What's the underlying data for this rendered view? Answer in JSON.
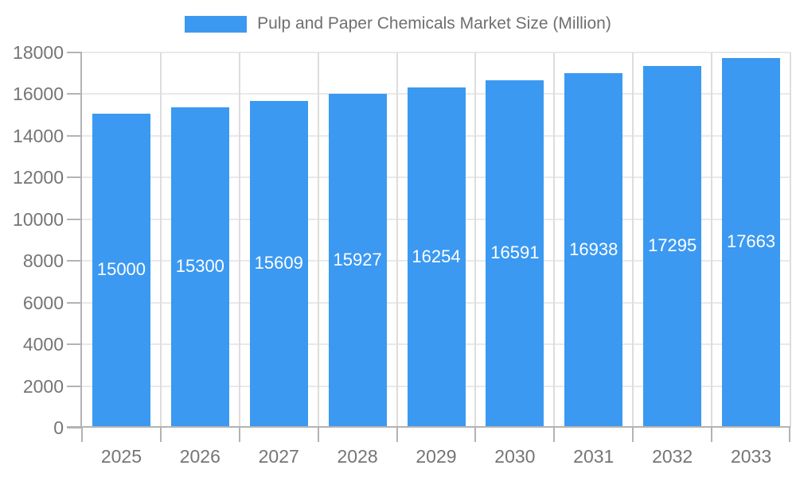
{
  "legend": {
    "label": "Pulp and Paper Chemicals Market Size (Million)",
    "swatch_color": "#3b99f1"
  },
  "chart_data": {
    "type": "bar",
    "title": "Pulp and Paper Chemicals Market Size (Million)",
    "series_name": "Pulp and Paper Chemicals Market Size (Million)",
    "categories": [
      "2025",
      "2026",
      "2027",
      "2028",
      "2029",
      "2030",
      "2031",
      "2032",
      "2033"
    ],
    "values": [
      15000,
      15300,
      15609,
      15927,
      16254,
      16591,
      16938,
      17295,
      17663
    ],
    "bar_labels": [
      "15000",
      "15300",
      "15609",
      "15927",
      "16254",
      "16591",
      "16938",
      "17295",
      "17663"
    ],
    "xlabel": "",
    "ylabel": "",
    "ylim": [
      0,
      18000
    ],
    "ytick_step": 2000,
    "yticks": [
      0,
      2000,
      4000,
      6000,
      8000,
      10000,
      12000,
      14000,
      16000,
      18000
    ],
    "ytick_labels": [
      "0",
      "2000",
      "4000",
      "6000",
      "8000",
      "10000",
      "12000",
      "14000",
      "16000",
      "18000"
    ],
    "grid": true,
    "legend_position": "top"
  },
  "colors": {
    "bar": "#3b99f1",
    "bar_label": "#ffffff",
    "h_gridline": "#e9e9e9",
    "v_gridline": "#dddddd",
    "axis_line": "#b3b3b3",
    "axis_label": "#757575",
    "legend_text": "#6f6f6f",
    "background": "#ffffff"
  }
}
